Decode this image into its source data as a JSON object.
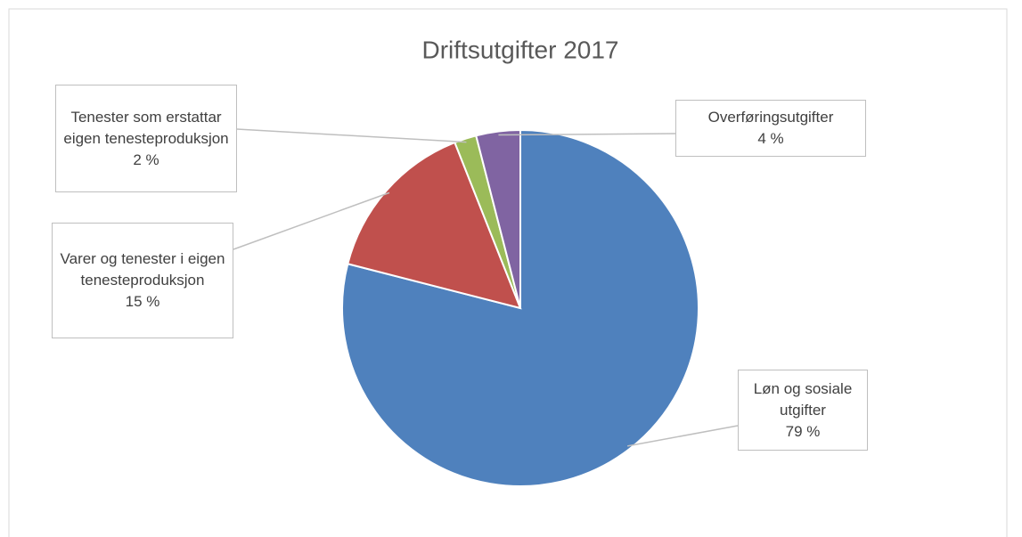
{
  "chart_data": {
    "type": "pie",
    "title": "Driftsutgifter 2017",
    "categories": [
      "Løn og sosiale utgifter",
      "Varer og tenester i eigen tenesteproduksjon",
      "Tenester som erstattar eigen tenesteproduksjon",
      "Overføringsutgifter"
    ],
    "values": [
      79,
      15,
      2,
      4
    ],
    "value_labels": [
      "79 %",
      "15 %",
      "2 %",
      "4 %"
    ],
    "colors": [
      "#4f81bd",
      "#c0504d",
      "#9bbb59",
      "#8064a2"
    ]
  }
}
